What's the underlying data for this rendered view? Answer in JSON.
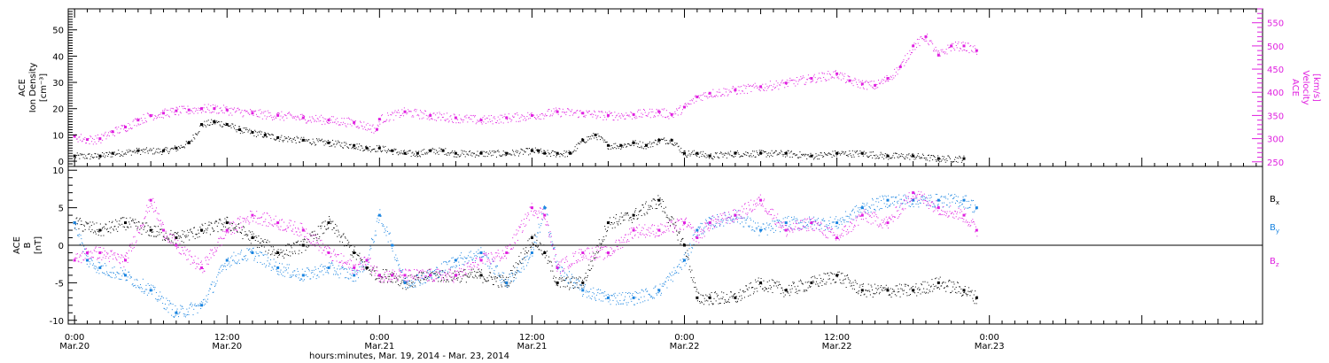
{
  "chart_data": [
    {
      "type": "scatter",
      "title": "",
      "xlabel": "hours:minutes, Mar. 19, 2014 - Mar. 23, 2014",
      "xlim": [
        -0.5,
        93.5
      ],
      "x_ticks": [
        {
          "x": 0,
          "time": "0:00",
          "date": "Mar.20"
        },
        {
          "x": 12,
          "time": "12:00",
          "date": "Mar.20"
        },
        {
          "x": 24,
          "time": "0:00",
          "date": "Mar.21"
        },
        {
          "x": 36,
          "time": "12:00",
          "date": "Mar.21"
        },
        {
          "x": 48,
          "time": "0:00",
          "date": "Mar.22"
        },
        {
          "x": 60,
          "time": "12:00",
          "date": "Mar.22"
        },
        {
          "x": 72,
          "time": "0:00",
          "date": "Mar.23"
        }
      ],
      "ylabel": [
        "ACE",
        "Ion Density",
        "[cm⁻³]"
      ],
      "ylim": [
        -2,
        58
      ],
      "y_ticks": [
        0,
        10,
        20,
        30,
        40,
        50
      ],
      "y2label": [
        "ACE",
        "Velocity",
        "[km/s]"
      ],
      "y2lim": [
        240,
        580
      ],
      "y2_ticks": [
        250,
        300,
        350,
        400,
        450,
        500,
        550
      ],
      "series": [
        {
          "name": "",
          "axis": "left",
          "color": "#000000",
          "x": [
            0,
            2,
            3,
            5,
            7,
            8,
            9,
            10,
            11,
            12,
            13,
            14,
            15,
            16,
            18,
            20,
            22,
            23,
            24,
            25,
            26,
            27,
            28,
            29,
            30,
            32,
            34,
            36,
            36.5,
            37,
            38,
            39,
            40,
            41,
            42,
            43,
            44,
            45,
            46,
            47,
            48,
            49,
            50,
            52,
            54,
            56,
            58,
            60,
            62,
            64,
            66,
            68,
            70
          ],
          "y": [
            2,
            2,
            3,
            4,
            4,
            5,
            7,
            14,
            15,
            14,
            12,
            11,
            10,
            9,
            8,
            7,
            6,
            5,
            5,
            4,
            3,
            3,
            4,
            4,
            3,
            3,
            3,
            4,
            4,
            3,
            3,
            3,
            8,
            10,
            6,
            6,
            7,
            6,
            8,
            8,
            3,
            3,
            2,
            3,
            3,
            3,
            2,
            3,
            3,
            2,
            2,
            1,
            1
          ]
        },
        {
          "name": "",
          "axis": "right",
          "color": "#e020e0",
          "x": [
            0,
            1,
            2,
            3,
            4,
            5,
            6,
            7,
            8,
            9,
            10,
            11,
            12,
            14,
            16,
            18,
            20,
            22,
            23.8,
            24,
            26,
            28,
            30,
            32,
            34,
            36,
            38,
            40,
            42,
            44,
            46,
            47,
            48,
            49,
            50,
            52,
            54,
            56,
            58,
            60,
            61,
            62,
            63,
            64,
            65,
            66,
            67,
            68,
            69,
            70,
            71
          ],
          "y": [
            305,
            298,
            300,
            315,
            325,
            340,
            350,
            355,
            360,
            362,
            365,
            365,
            362,
            355,
            350,
            345,
            340,
            335,
            320,
            342,
            358,
            350,
            345,
            340,
            345,
            350,
            358,
            355,
            350,
            352,
            358,
            352,
            368,
            390,
            398,
            405,
            412,
            420,
            430,
            440,
            425,
            418,
            415,
            430,
            455,
            500,
            520,
            480,
            500,
            500,
            490
          ]
        }
      ]
    },
    {
      "type": "scatter",
      "title": "",
      "xlim": [
        -0.5,
        93.5
      ],
      "ylabel": [
        "ACE",
        "B",
        "[nT]"
      ],
      "ylim": [
        -10.5,
        10.5
      ],
      "y_ticks": [
        -10,
        -5,
        0,
        5,
        10
      ],
      "zero_line": true,
      "legend_position": "right",
      "series": [
        {
          "name": "Bₓ",
          "label_main": "B",
          "label_sub": "x",
          "color": "#000000",
          "x": [
            0,
            2,
            4,
            6,
            8,
            10,
            12,
            14,
            16,
            18,
            20,
            22,
            23,
            24,
            25,
            26,
            28,
            30,
            32,
            34,
            36,
            37,
            38,
            40,
            42,
            44,
            46,
            48,
            49,
            50,
            52,
            54,
            56,
            58,
            60,
            62,
            64,
            66,
            68,
            70,
            71
          ],
          "y": [
            3,
            2,
            3,
            2,
            1,
            2,
            3,
            1,
            -1,
            0,
            3,
            -1,
            -3,
            -4,
            -4,
            -5,
            -4,
            -4,
            -4,
            -5,
            1,
            -1,
            -5,
            -5,
            3,
            4,
            6,
            0,
            -7,
            -7,
            -7,
            -5,
            -6,
            -5,
            -4,
            -6,
            -6,
            -6,
            -5,
            -6,
            -7
          ]
        },
        {
          "name": "Bᵧ",
          "label_main": "B",
          "label_sub": "y",
          "color": "#1a84e0",
          "x": [
            0,
            1,
            2,
            4,
            6,
            8,
            10,
            12,
            14,
            16,
            18,
            20,
            22,
            23,
            24,
            25,
            26,
            28,
            30,
            32,
            34,
            36,
            37,
            38,
            40,
            42,
            44,
            46,
            48,
            49,
            50,
            52,
            54,
            56,
            58,
            60,
            62,
            64,
            66,
            68,
            70,
            71
          ],
          "y": [
            3,
            -2,
            -3,
            -4,
            -6,
            -9,
            -8,
            -2,
            -1,
            -3,
            -4,
            -3,
            -4,
            -2,
            4,
            0,
            -5,
            -4,
            -2,
            -1,
            -5,
            -1,
            5,
            -3,
            -6,
            -7,
            -7,
            -6,
            -2,
            2,
            3,
            4,
            2,
            3,
            3,
            3,
            5,
            6,
            6,
            6,
            6,
            5
          ]
        },
        {
          "name": "B_z",
          "label_main": "B",
          "label_sub": "z",
          "color": "#e020e0",
          "x": [
            0,
            1,
            2,
            4,
            6,
            7,
            8,
            10,
            12,
            14,
            16,
            18,
            20,
            22,
            23,
            24,
            25,
            26,
            28,
            30,
            32,
            34,
            36,
            37,
            38,
            40,
            42,
            44,
            46,
            48,
            49,
            50,
            52,
            54,
            56,
            58,
            60,
            62,
            64,
            66,
            68,
            70,
            71
          ],
          "y": [
            -2,
            -1,
            -1,
            -2,
            6,
            2,
            0,
            -3,
            2,
            4,
            3,
            2,
            -1,
            -3,
            -2,
            -4,
            -4,
            -4,
            -4,
            -4,
            -2,
            -1,
            5,
            4,
            -3,
            -1,
            -1,
            2,
            2,
            3,
            1,
            3,
            4,
            6,
            2,
            3,
            1,
            4,
            3,
            7,
            5,
            4,
            2
          ]
        }
      ]
    }
  ]
}
